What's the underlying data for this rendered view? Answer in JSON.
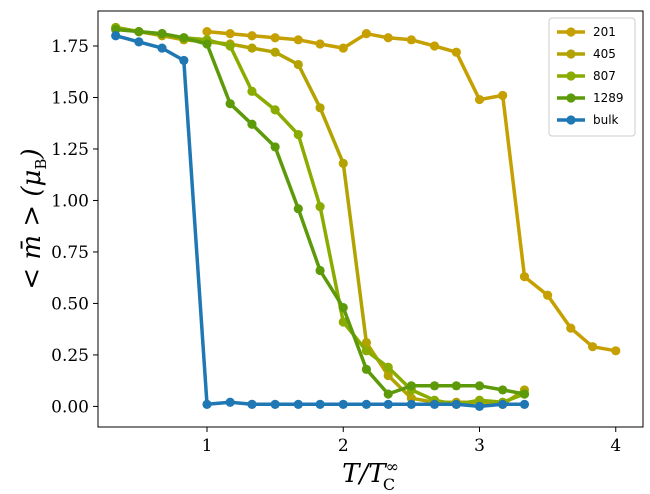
{
  "chart_data": {
    "type": "line",
    "xlabel": "T/T_C^∞",
    "ylabel": "< m̄ > (μ_B)",
    "xlim": [
      0.2,
      4.2
    ],
    "ylim": [
      -0.1,
      1.92
    ],
    "xticks": [
      1,
      2,
      3,
      4
    ],
    "xtick_labels": [
      "1",
      "2",
      "3",
      "4"
    ],
    "yticks": [
      0.0,
      0.25,
      0.5,
      0.75,
      1.0,
      1.25,
      1.5,
      1.75
    ],
    "ytick_labels": [
      "0.00",
      "0.25",
      "0.50",
      "0.75",
      "1.00",
      "1.25",
      "1.50",
      "1.75"
    ],
    "legend_position": "top-right",
    "series": [
      {
        "name": "201",
        "color": "#c5a000",
        "x": [
          1.0,
          1.17,
          1.33,
          1.5,
          1.67,
          1.83,
          2.0,
          2.17,
          2.33,
          2.5,
          2.67,
          2.83,
          3.0,
          3.17,
          3.33,
          3.5,
          3.67,
          3.83,
          4.0
        ],
        "y": [
          1.82,
          1.81,
          1.8,
          1.79,
          1.78,
          1.76,
          1.74,
          1.81,
          1.79,
          1.78,
          1.75,
          1.72,
          1.49,
          1.51,
          0.63,
          0.54,
          0.38,
          0.29,
          0.27
        ]
      },
      {
        "name": "405",
        "color": "#b3a300",
        "x": [
          0.33,
          0.5,
          0.67,
          0.83,
          1.0,
          1.17,
          1.33,
          1.5,
          1.67,
          1.83,
          2.0,
          2.17,
          2.33,
          2.5,
          2.67,
          2.83,
          3.0,
          3.17,
          3.33
        ],
        "y": [
          1.84,
          1.82,
          1.8,
          1.78,
          1.77,
          1.76,
          1.74,
          1.72,
          1.66,
          1.45,
          1.18,
          0.31,
          0.15,
          0.04,
          0.02,
          0.02,
          0.02,
          0.01,
          0.08
        ]
      },
      {
        "name": "807",
        "color": "#8aab00",
        "x": [
          0.33,
          0.5,
          0.67,
          0.83,
          1.0,
          1.17,
          1.33,
          1.5,
          1.67,
          1.83,
          2.0,
          2.17,
          2.33,
          2.5,
          2.67,
          2.83,
          3.0,
          3.17,
          3.33
        ],
        "y": [
          1.84,
          1.82,
          1.81,
          1.79,
          1.78,
          1.75,
          1.53,
          1.44,
          1.32,
          0.97,
          0.41,
          0.27,
          0.19,
          0.08,
          0.03,
          0.01,
          0.03,
          0.02,
          0.06
        ]
      },
      {
        "name": "1289",
        "color": "#5c9a0a",
        "x": [
          0.33,
          0.5,
          0.67,
          0.83,
          1.0,
          1.17,
          1.33,
          1.5,
          1.67,
          1.83,
          2.0,
          2.17,
          2.33,
          2.5,
          2.67,
          2.83,
          3.0,
          3.17,
          3.33
        ],
        "y": [
          1.83,
          1.82,
          1.81,
          1.79,
          1.76,
          1.47,
          1.37,
          1.26,
          0.96,
          0.66,
          0.48,
          0.18,
          0.06,
          0.1,
          0.1,
          0.1,
          0.1,
          0.08,
          0.06
        ]
      },
      {
        "name": "bulk",
        "color": "#1f77b4",
        "x": [
          0.33,
          0.5,
          0.67,
          0.83,
          1.0,
          1.17,
          1.33,
          1.5,
          1.67,
          1.83,
          2.0,
          2.17,
          2.33,
          2.5,
          2.67,
          2.83,
          3.0,
          3.17,
          3.33
        ],
        "y": [
          1.8,
          1.77,
          1.74,
          1.68,
          0.01,
          0.02,
          0.01,
          0.01,
          0.01,
          0.01,
          0.01,
          0.01,
          0.01,
          0.01,
          0.01,
          0.01,
          0.0,
          0.01,
          0.01
        ]
      }
    ]
  }
}
